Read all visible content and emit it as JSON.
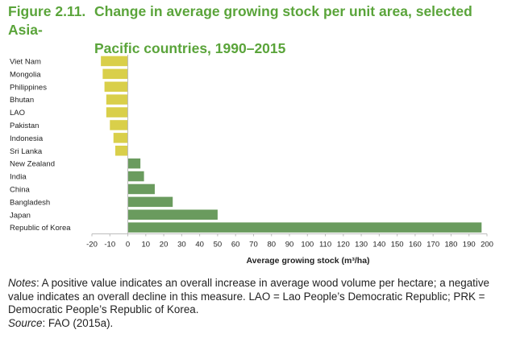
{
  "figure": {
    "number": "Figure 2.11.",
    "title_line1": "Change in average growing stock per unit area, selected Asia-",
    "title_line2": "Pacific countries, 1990–2015"
  },
  "colors": {
    "title": "#5aa43a",
    "negative": "#d9cf4a",
    "positive": "#6a9b5e"
  },
  "chart_data": {
    "type": "bar",
    "orientation": "horizontal",
    "categories": [
      "Viet Nam",
      "Mongolia",
      "Philippines",
      "Bhutan",
      "LAO",
      "Pakistan",
      "Indonesia",
      "Sri Lanka",
      "New Zealand",
      "India",
      "China",
      "Bangladesh",
      "Japan",
      "Republic of Korea"
    ],
    "values": [
      -15,
      -14,
      -13,
      -12,
      -12,
      -10,
      -8,
      -7,
      7,
      9,
      15,
      25,
      50,
      197
    ],
    "xlabel": "Average growing stock (m³/ha)",
    "xlim": [
      -20,
      200
    ],
    "xticks": [
      -20,
      -10,
      0,
      10,
      20,
      30,
      40,
      50,
      60,
      70,
      80,
      90,
      100,
      110,
      120,
      130,
      140,
      150,
      160,
      170,
      180,
      190,
      200
    ],
    "grid": false
  },
  "notes": {
    "notes_label": "Notes",
    "notes_text": ": A positive value indicates an overall increase in average wood volume per hectare; a negative value indicates an overall decline in this measure. LAO = Lao People’s Democratic Republic; PRK = Democratic People’s Republic of Korea.",
    "source_label": "Source",
    "source_text": ": FAO (2015a)."
  }
}
